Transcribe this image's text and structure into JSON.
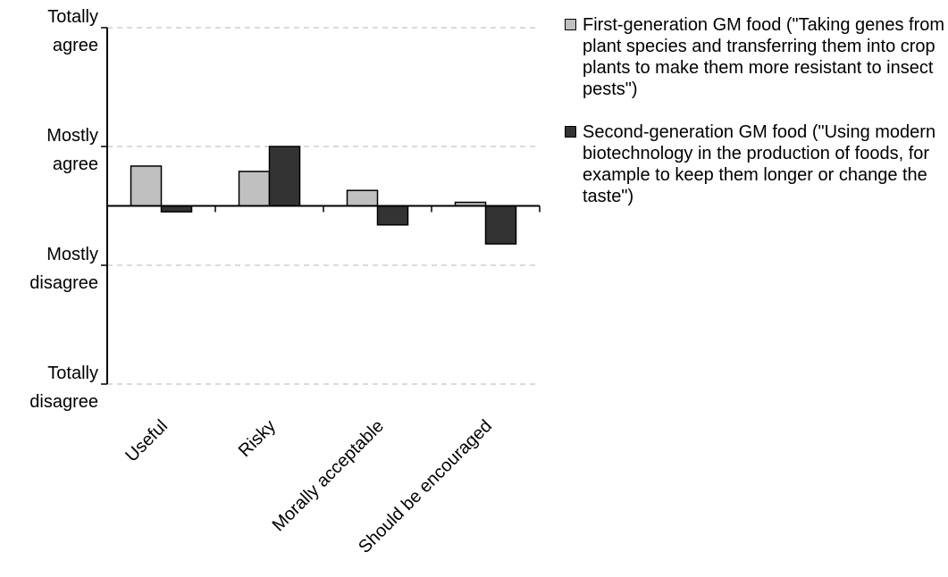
{
  "chart_data": {
    "type": "bar",
    "categories": [
      "Useful",
      "Risky",
      "Morally acceptable",
      "Should be encouraged"
    ],
    "y_tick_labels": [
      {
        "value": 3,
        "lines": [
          "Totally",
          "agree"
        ]
      },
      {
        "value": 1,
        "lines": [
          "Mostly",
          "agree"
        ]
      },
      {
        "value": -1,
        "lines": [
          "Mostly",
          "disagree"
        ]
      },
      {
        "value": -3,
        "lines": [
          "Totally",
          "disagree"
        ]
      }
    ],
    "ylim": [
      -3,
      3
    ],
    "grid": true,
    "legend_position": "right",
    "series": [
      {
        "name": "First-generation GM food (\"Taking genes from plant species and transferring them into crop plants to make them more resistant to insect pests\")",
        "color": "#c0c0c0",
        "values": [
          0.67,
          0.58,
          0.26,
          0.06
        ]
      },
      {
        "name": "Second-generation GM food (\"Using modern biotechnology in the production of foods, for example to keep them longer or change the taste\")",
        "color": "#333333",
        "values": [
          -0.1,
          1.0,
          -0.32,
          -0.64
        ]
      }
    ]
  }
}
